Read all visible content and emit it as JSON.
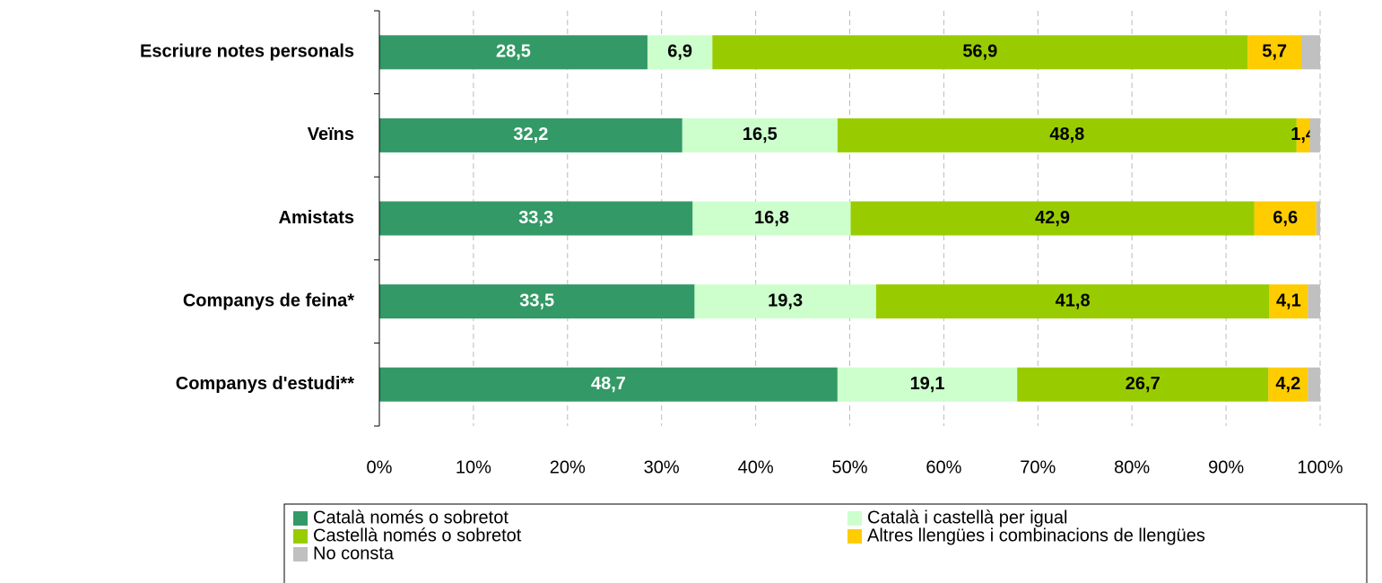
{
  "chart_data": {
    "type": "stacked-barh",
    "categories": [
      "Escriure notes personals",
      "Veïns",
      "Amistats",
      "Companys de feina*",
      "Companys d'estudi**"
    ],
    "series": [
      {
        "name": "Català només o sobretot",
        "color": "#339966",
        "values": [
          28.5,
          32.2,
          33.3,
          33.5,
          48.7
        ],
        "value_labels": [
          "28,5",
          "32,2",
          "33,3",
          "33,5",
          "48,7"
        ]
      },
      {
        "name": "Català i castellà per igual",
        "color": "#ccffcc",
        "values": [
          6.9,
          16.5,
          16.8,
          19.3,
          19.1
        ],
        "value_labels": [
          "6,9",
          "16,5",
          "16,8",
          "19,3",
          "19,1"
        ]
      },
      {
        "name": "Castellà només o sobretot",
        "color": "#99cc00",
        "values": [
          56.9,
          48.8,
          42.9,
          41.8,
          26.7
        ],
        "value_labels": [
          "56,9",
          "48,8",
          "42,9",
          "41,8",
          "26,7"
        ]
      },
      {
        "name": "Altres llengües i combinacions de llengües",
        "color": "#ffcc00",
        "values": [
          5.7,
          1.4,
          6.6,
          4.1,
          4.2
        ],
        "value_labels": [
          "5,7",
          "1,4",
          "6,6",
          "4,1",
          "4,2"
        ]
      },
      {
        "name": "No consta",
        "color": "#c0c0c0",
        "values": [
          2.0,
          1.1,
          0.4,
          1.3,
          1.3
        ]
      }
    ],
    "xlim": [
      0,
      100
    ],
    "xticks": [
      {
        "value": 0,
        "label": "0%"
      },
      {
        "value": 10,
        "label": "10%"
      },
      {
        "value": 20,
        "label": "20%"
      },
      {
        "value": 30,
        "label": "30%"
      },
      {
        "value": 40,
        "label": "40%"
      },
      {
        "value": 50,
        "label": "50%"
      },
      {
        "value": 60,
        "label": "60%"
      },
      {
        "value": 70,
        "label": "70%"
      },
      {
        "value": 80,
        "label": "80%"
      },
      {
        "value": 90,
        "label": "90%"
      },
      {
        "value": 100,
        "label": "100%"
      }
    ],
    "grid": true
  }
}
